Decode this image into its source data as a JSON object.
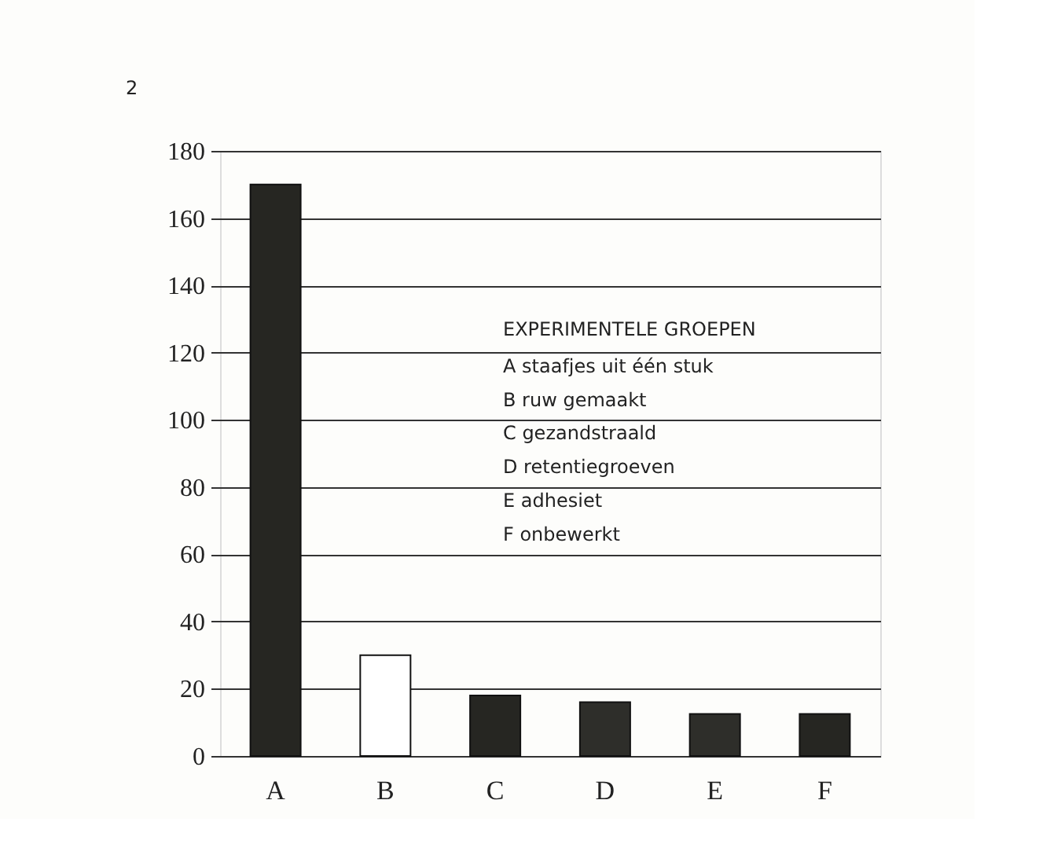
{
  "chart_data": {
    "type": "bar",
    "categories": [
      "A",
      "B",
      "C",
      "D",
      "E",
      "F"
    ],
    "values": [
      170,
      30,
      18,
      16,
      12.5,
      12.5
    ],
    "colors": [
      "#262622",
      "#ffffff",
      "#262622",
      "#2e2e2a",
      "#2e2e2a",
      "#262622"
    ],
    "ylim": [
      0,
      180
    ],
    "yticks": [
      0,
      20,
      40,
      60,
      80,
      100,
      120,
      140,
      160,
      180
    ],
    "grid": "y",
    "annotations": [
      "2",
      "EXPERIMENTELE GROEPEN",
      "A staafjes uit één stuk",
      "B ruw gemaakt",
      "C gezandstraald",
      "D retentiegroeven",
      "E adhesiet",
      "F onbewerkt"
    ]
  }
}
